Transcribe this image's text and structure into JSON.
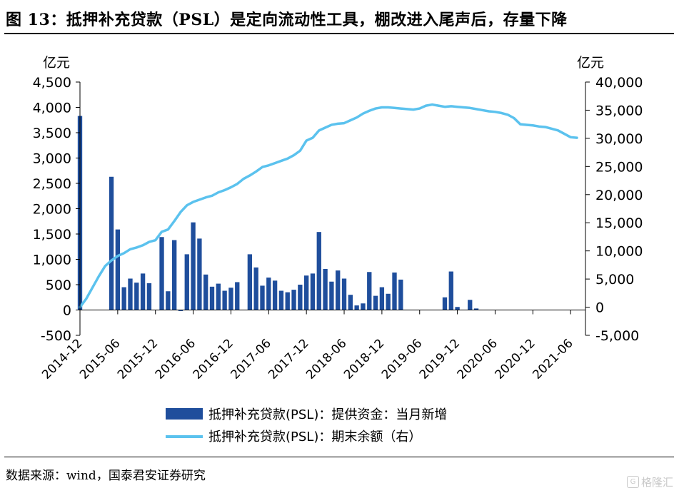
{
  "title": "图 13：抵押补充贷款（PSL）是定向流动性工具，棚改进入尾声后，存量下降",
  "source": "数据来源：wind，国泰君安证券研究",
  "watermark": "格隆汇",
  "colors": {
    "bar": "#1f4e9c",
    "line": "#5bc2ee",
    "text": "#000000"
  },
  "chart_data": {
    "type": "bar+line",
    "left_axis": {
      "unit": "亿元",
      "ylim": [
        -500,
        4500
      ],
      "ticks": [
        4500,
        4000,
        3500,
        3000,
        2500,
        2000,
        1500,
        1000,
        500,
        0,
        -500
      ],
      "tick_labels": [
        "4,500",
        "4,000",
        "3,500",
        "3,000",
        "2,500",
        "2,000",
        "1,500",
        "1,000",
        "500",
        "0",
        "-500"
      ]
    },
    "right_axis": {
      "unit": "亿元",
      "ylim": [
        -5000,
        40000
      ],
      "ticks": [
        40000,
        35000,
        30000,
        25000,
        20000,
        15000,
        10000,
        5000,
        0,
        -5000
      ],
      "tick_labels": [
        "40,000",
        "35,000",
        "30,000",
        "25,000",
        "20,000",
        "15,000",
        "10,000",
        "5,000",
        "0",
        "-5,000"
      ]
    },
    "x_tick_labels": [
      "2014-12",
      "2015-06",
      "2015-12",
      "2016-06",
      "2016-12",
      "2017-06",
      "2017-12",
      "2018-06",
      "2018-12",
      "2019-06",
      "2019-12",
      "2020-06",
      "2020-12",
      "2021-06"
    ],
    "months": [
      "2014-12",
      "2015-01",
      "2015-02",
      "2015-03",
      "2015-04",
      "2015-05",
      "2015-06",
      "2015-07",
      "2015-08",
      "2015-09",
      "2015-10",
      "2015-11",
      "2015-12",
      "2016-01",
      "2016-02",
      "2016-03",
      "2016-04",
      "2016-05",
      "2016-06",
      "2016-07",
      "2016-08",
      "2016-09",
      "2016-10",
      "2016-11",
      "2016-12",
      "2017-01",
      "2017-02",
      "2017-03",
      "2017-04",
      "2017-05",
      "2017-06",
      "2017-07",
      "2017-08",
      "2017-09",
      "2017-10",
      "2017-11",
      "2017-12",
      "2018-01",
      "2018-02",
      "2018-03",
      "2018-04",
      "2018-05",
      "2018-06",
      "2018-07",
      "2018-08",
      "2018-09",
      "2018-10",
      "2018-11",
      "2018-12",
      "2019-01",
      "2019-02",
      "2019-03",
      "2019-04",
      "2019-05",
      "2019-06",
      "2019-07",
      "2019-08",
      "2019-09",
      "2019-10",
      "2019-11",
      "2019-12",
      "2020-01",
      "2020-02",
      "2020-03",
      "2020-04",
      "2020-05",
      "2020-06",
      "2020-07",
      "2020-08",
      "2020-09",
      "2020-10",
      "2020-11",
      "2020-12",
      "2021-01",
      "2021-02",
      "2021-03",
      "2021-04",
      "2021-05",
      "2021-06",
      "2021-07"
    ],
    "series": [
      {
        "name": "抵押补充贷款(PSL)：提供资金：当月新增",
        "type": "bar",
        "axis": "left",
        "values": [
          3831,
          0,
          0,
          0,
          0,
          2630,
          1590,
          450,
          620,
          540,
          720,
          530,
          0,
          1440,
          370,
          1380,
          -20,
          1100,
          1730,
          1410,
          700,
          460,
          520,
          380,
          440,
          550,
          0,
          1100,
          840,
          480,
          640,
          580,
          380,
          350,
          400,
          500,
          680,
          720,
          1540,
          810,
          560,
          780,
          620,
          300,
          90,
          130,
          750,
          280,
          450,
          320,
          740,
          600,
          0,
          0,
          0,
          0,
          0,
          0,
          250,
          760,
          60,
          0,
          200,
          30,
          0,
          0,
          0,
          0,
          0,
          0,
          0,
          0,
          0,
          0,
          0,
          0,
          0,
          0,
          0,
          0
        ]
      },
      {
        "name": "抵押补充贷款(PSL)：期末余额（右）",
        "type": "line",
        "axis": "right",
        "values": [
          0,
          1500,
          3500,
          5500,
          7300,
          8300,
          9100,
          9600,
          10300,
          10600,
          11000,
          11600,
          11900,
          13400,
          13800,
          15300,
          16900,
          18100,
          18700,
          19100,
          19500,
          19800,
          20400,
          20800,
          21300,
          21900,
          22800,
          23400,
          24100,
          24900,
          25200,
          25600,
          26000,
          26400,
          27000,
          27800,
          29600,
          30100,
          31400,
          31900,
          32400,
          32600,
          32700,
          33200,
          33700,
          34400,
          34900,
          35300,
          35500,
          35500,
          35400,
          35300,
          35200,
          35100,
          35300,
          35800,
          36000,
          35800,
          35600,
          35700,
          35600,
          35500,
          35400,
          35200,
          35000,
          34800,
          34700,
          34500,
          34200,
          33600,
          32500,
          32400,
          32300,
          32100,
          32000,
          31700,
          31400,
          30800,
          30200,
          30100
        ]
      }
    ]
  },
  "legend": {
    "bar_label": "抵押补充贷款(PSL)：提供资金：当月新增",
    "line_label": "抵押补充贷款(PSL)：期末余额（右）"
  }
}
